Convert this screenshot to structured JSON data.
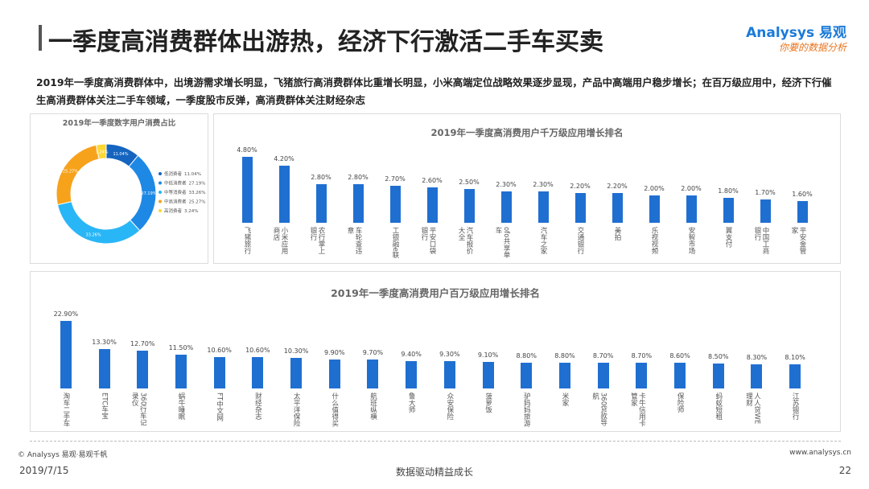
{
  "header": {
    "title": "一季度高消费群体出游热，经济下行激活二手车买卖",
    "logo": "Analysys 易观",
    "slogan": "你要的数据分析"
  },
  "summary": "2019年一季度高消费群体中，出境游需求增长明显，飞猪旅行高消费群体比重增长明显，小米高端定位战略效果逐步显现，产品中高端用户稳步增长；在百万级应用中，经济下行催生高消费群体关注二手车领域，一季度股市反弹，高消费群体关注财经杂志",
  "chart_data": [
    {
      "type": "pie",
      "donut": true,
      "title": "2019年一季度数字用户消费占比",
      "categories": [
        "低消费者",
        "中低消费者",
        "中等消费者",
        "中高消费者",
        "高消费者"
      ],
      "values": [
        11.04,
        27.19,
        33.26,
        25.27,
        3.24
      ],
      "value_labels": [
        "11.04%",
        "27.19%",
        "33.26%",
        "25.27%",
        "3.24%"
      ],
      "colors": [
        "#1565c0",
        "#1e88e5",
        "#29b6f6",
        "#f7a21b",
        "#fdd835"
      ]
    },
    {
      "type": "bar",
      "title": "2019年一季度高消费用户千万级应用增长排名",
      "categories": [
        "飞猪旅行",
        "小米应用商店",
        "农行掌上银行",
        "车轮查违章",
        "工银融e联",
        "平安口袋银行",
        "汽车报价大全",
        "ofo共享单车",
        "汽车之家",
        "交通银行",
        "美拍",
        "乐视视频",
        "安智市场",
        "翼支付",
        "中国工商银行",
        "平安金管家"
      ],
      "values": [
        4.8,
        4.2,
        2.8,
        2.8,
        2.7,
        2.6,
        2.5,
        2.3,
        2.3,
        2.2,
        2.2,
        2.0,
        2.0,
        1.8,
        1.7,
        1.6
      ],
      "value_labels": [
        "4.80%",
        "4.20%",
        "2.80%",
        "2.80%",
        "2.70%",
        "2.60%",
        "2.50%",
        "2.30%",
        "2.30%",
        "2.20%",
        "2.20%",
        "2.00%",
        "2.00%",
        "1.80%",
        "1.70%",
        "1.60%"
      ],
      "color": "#1f6fd1"
    },
    {
      "type": "bar",
      "title": "2019年一季度高消费用户百万级应用增长排名",
      "categories": [
        "淘车二手车",
        "ETC车宝",
        "360行车记录仪",
        "蜗牛睡眠",
        "FT中文网",
        "财经杂志",
        "太平洋保险",
        "什么值得买",
        "航班纵横",
        "鲁大师",
        "众安保险",
        "菠萝饭",
        "驴妈妈旅游",
        "米家",
        "360贷款导航",
        "卡牛信用卡管家",
        "保险师",
        "蚂蚁短租",
        "人人贷WE理财",
        "江苏银行"
      ],
      "values": [
        22.9,
        13.3,
        12.7,
        11.5,
        10.6,
        10.6,
        10.3,
        9.9,
        9.7,
        9.4,
        9.3,
        9.1,
        8.8,
        8.8,
        8.7,
        8.7,
        8.6,
        8.5,
        8.3,
        8.1
      ],
      "value_labels": [
        "22.90%",
        "13.30%",
        "12.70%",
        "11.50%",
        "10.60%",
        "10.60%",
        "10.30%",
        "9.90%",
        "9.70%",
        "9.40%",
        "9.30%",
        "9.10%",
        "8.80%",
        "8.80%",
        "8.70%",
        "8.70%",
        "8.60%",
        "8.50%",
        "8.30%",
        "8.10%"
      ],
      "color": "#1f6fd1"
    }
  ],
  "footer": {
    "copyright": "© Analysys 易观·易观千帆",
    "website": "www.analysys.cn",
    "date": "2019/7/15",
    "tagline": "数据驱动精益成长",
    "page": "22"
  }
}
